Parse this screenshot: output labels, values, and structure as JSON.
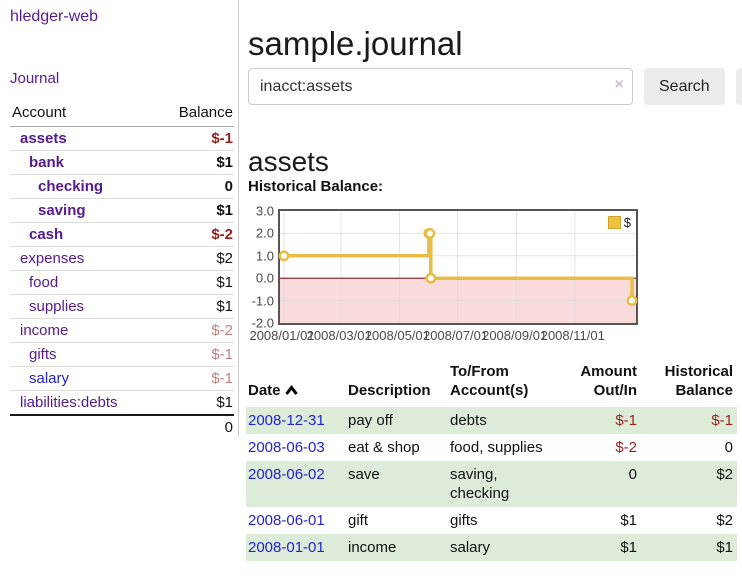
{
  "app": {
    "title": "hledger-web",
    "nav_journal_label": "Journal"
  },
  "sidebar": {
    "headers": {
      "account": "Account",
      "balance": "Balance"
    },
    "accounts": [
      {
        "name": "assets",
        "balance": "$-1",
        "depth": 1,
        "bold": true,
        "neg": "strong"
      },
      {
        "name": "bank",
        "balance": "$1",
        "depth": 2,
        "bold": true
      },
      {
        "name": "checking",
        "balance": "0",
        "depth": 3,
        "bold": true
      },
      {
        "name": "saving",
        "balance": "$1",
        "depth": 3,
        "bold": true
      },
      {
        "name": "cash",
        "balance": "$-2",
        "depth": 2,
        "bold": true,
        "neg": "strong"
      },
      {
        "name": "expenses",
        "balance": "$2",
        "depth": 1
      },
      {
        "name": "food",
        "balance": "$1",
        "depth": 2
      },
      {
        "name": "supplies",
        "balance": "$1",
        "depth": 2
      },
      {
        "name": "income",
        "balance": "$-2",
        "depth": 1,
        "neg": "dim"
      },
      {
        "name": "gifts",
        "balance": "$-1",
        "depth": 2,
        "neg": "dim"
      },
      {
        "name": "salary",
        "balance": "$-1",
        "depth": 2,
        "neg": "dim",
        "link": "unvisited"
      },
      {
        "name": "liabilities:debts",
        "balance": "$1",
        "depth": 1
      }
    ],
    "total": "0"
  },
  "header": {
    "title": "sample.journal"
  },
  "search": {
    "value": "inacct:assets",
    "clear_label": "×",
    "button_label": "Search",
    "help_label": "?"
  },
  "account_page": {
    "heading": "assets",
    "chart_label": "Historical Balance:"
  },
  "chart_data": {
    "type": "line",
    "title": "Historical Balance",
    "steps": true,
    "series": [
      {
        "name": "$",
        "color": "#e8bd45",
        "points": [
          [
            "2008-01-01",
            1
          ],
          [
            "2008-06-01",
            2
          ],
          [
            "2008-06-02",
            2
          ],
          [
            "2008-06-03",
            0
          ],
          [
            "2008-12-31",
            -1
          ]
        ]
      }
    ],
    "x_tick_labels": [
      "2008/01/01",
      "2008/03/01",
      "2008/05/01",
      "2008/07/01",
      "2008/09/01",
      "2008/11/01"
    ],
    "y_tick_labels": [
      "3.0",
      "2.0",
      "1.0",
      "0.0",
      "-1.0",
      "-2.0"
    ],
    "ylim": [
      -2,
      3
    ],
    "xlim": [
      "2008-01-01",
      "2008-12-31"
    ],
    "grid": true,
    "legend_position": "top-right",
    "legend_label": "$",
    "colors": {
      "line": "#e8bd45",
      "negative_region": "#f9dbdb",
      "zero_line": "#8b1c1c",
      "gridline": "#dcdcdc"
    }
  },
  "register": {
    "headers": {
      "date": "Date",
      "description": "Description",
      "accounts": "To/From Account(s)",
      "amount": "Amount Out/In",
      "balance": "Historical Balance"
    },
    "rows": [
      {
        "date": "2008-12-31",
        "description": "pay off",
        "accounts": "debts",
        "amount": "$-1",
        "amount_neg": true,
        "balance": "$-1",
        "balance_neg": true
      },
      {
        "date": "2008-06-03",
        "description": "eat & shop",
        "accounts": "food, supplies",
        "amount": "$-2",
        "amount_neg": true,
        "balance": "0",
        "balance_neg": false
      },
      {
        "date": "2008-06-02",
        "description": "save",
        "accounts": "saving, checking",
        "amount": "0",
        "amount_neg": false,
        "balance": "$2",
        "balance_neg": false
      },
      {
        "date": "2008-06-01",
        "description": "gift",
        "accounts": "gifts",
        "amount": "$1",
        "amount_neg": false,
        "balance": "$2",
        "balance_neg": false
      },
      {
        "date": "2008-01-01",
        "description": "income",
        "accounts": "salary",
        "amount": "$1",
        "amount_neg": false,
        "balance": "$1",
        "balance_neg": false
      }
    ]
  }
}
